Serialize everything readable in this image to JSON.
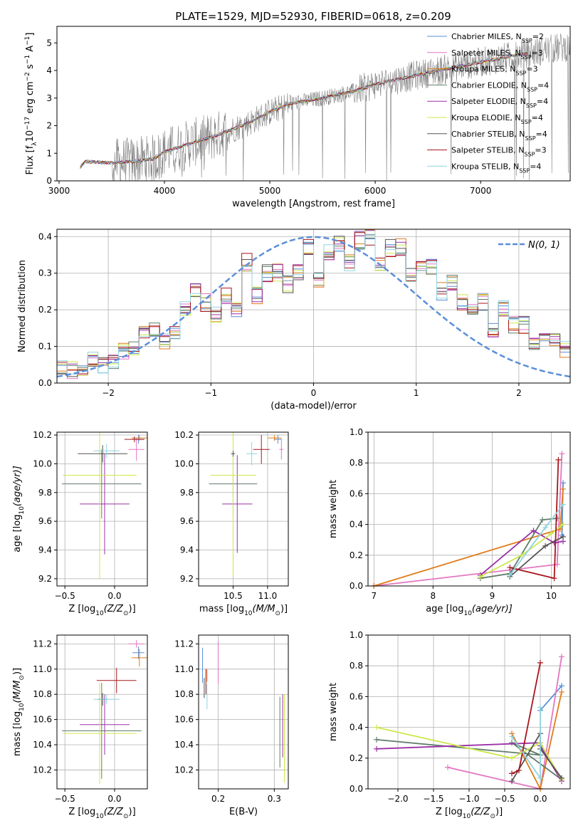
{
  "figure": {
    "title": "PLATE=1529, MJD=52930, FIBERID=0618, z=0.209"
  },
  "models": [
    {
      "name": "Chabrier MILES, N",
      "nssp": "=2",
      "color": "#5b8fd9"
    },
    {
      "name": "Salpeter MILES, N",
      "nssp": "=3",
      "color": "#e377c2"
    },
    {
      "name": "Kroupa MILES, N",
      "nssp": "=3",
      "color": "#e07b1a"
    },
    {
      "name": "Chabrier ELODIE, N",
      "nssp": "=4",
      "color": "#607d6a"
    },
    {
      "name": "Salpeter ELODIE, N",
      "nssp": "=4",
      "color": "#9b30a8"
    },
    {
      "name": "Kroupa ELODIE, N",
      "nssp": "=4",
      "color": "#cde84a"
    },
    {
      "name": "Chabrier STELIB, N",
      "nssp": "=4",
      "color": "#555555"
    },
    {
      "name": "Salpeter STELIB, N",
      "nssp": "=3",
      "color": "#a8161c"
    },
    {
      "name": "Kroupa STELIB, N",
      "nssp": "=4",
      "color": "#8fd3e0"
    }
  ],
  "colors": {
    "data": "#808080",
    "gauss": "#5b8fd9",
    "grid": "#b0b0b0"
  },
  "chart_data": [
    {
      "id": "spectrum",
      "type": "line",
      "title": "PLATE=1529, MJD=52930, FIBERID=0618, z=0.209",
      "xlabel": "wavelength [Angstrom, rest frame]",
      "ylabel_main": "Flux [f",
      "ylabel_sub": "λ",
      "ylabel_rest": "10",
      "ylabel_exp": "−17",
      "ylabel_unit": " erg cm",
      "ylabel_unit_exp1": "−2",
      "ylabel_unit2": " s",
      "ylabel_unit_exp2": "−1",
      "ylabel_unit3": " A",
      "ylabel_unit_exp3": "−1",
      "ylabel_end": "]",
      "xlim": [
        2980,
        7850
      ],
      "ylim": [
        0,
        5.6
      ],
      "xticks": [
        "3000",
        "4000",
        "5000",
        "6000",
        "7000"
      ],
      "xtick_values": [
        3000,
        4000,
        5000,
        6000,
        7000
      ],
      "yticks": [
        "0",
        "1",
        "2",
        "3",
        "4",
        "5"
      ],
      "ytick_values": [
        0,
        1,
        2,
        3,
        4,
        5
      ],
      "legend_sub": "SSP",
      "continuum": [
        [
          3200,
          0.5
        ],
        [
          3250,
          0.7
        ],
        [
          3500,
          0.65
        ],
        [
          3700,
          0.7
        ],
        [
          3900,
          0.8
        ],
        [
          4000,
          1.05
        ],
        [
          4200,
          1.3
        ],
        [
          4500,
          1.65
        ],
        [
          4800,
          2.1
        ],
        [
          5000,
          2.5
        ],
        [
          5200,
          2.8
        ],
        [
          5500,
          3.0
        ],
        [
          5800,
          3.25
        ],
        [
          6000,
          3.5
        ],
        [
          6300,
          3.75
        ],
        [
          6600,
          4.0
        ],
        [
          7000,
          4.3
        ],
        [
          7400,
          4.6
        ],
        [
          7800,
          4.85
        ]
      ],
      "data_start": 3200,
      "data_end": 7850,
      "grid": false
    },
    {
      "id": "residuals",
      "type": "histogram",
      "xlabel": "(data-model)/error",
      "ylabel": "Normed distribution",
      "legend_label": "N(0, 1)",
      "xlim": [
        -2.5,
        2.5
      ],
      "ylim": [
        0,
        0.42
      ],
      "xticks": [
        "−2",
        "−1",
        "0",
        "1",
        "2"
      ],
      "xtick_values": [
        -2,
        -1,
        0,
        1,
        2
      ],
      "yticks": [
        "0.0",
        "0.1",
        "0.2",
        "0.3",
        "0.4"
      ],
      "ytick_values": [
        0,
        0.1,
        0.2,
        0.3,
        0.4
      ],
      "bin_width": 0.1,
      "bin_start": -2.5,
      "base_hist": [
        0.04,
        0.035,
        0.03,
        0.06,
        0.05,
        0.055,
        0.09,
        0.1,
        0.14,
        0.15,
        0.11,
        0.14,
        0.2,
        0.25,
        0.22,
        0.19,
        0.24,
        0.2,
        0.33,
        0.24,
        0.3,
        0.3,
        0.27,
        0.3,
        0.37,
        0.28,
        0.36,
        0.38,
        0.33,
        0.39,
        0.4,
        0.33,
        0.37,
        0.37,
        0.3,
        0.32,
        0.32,
        0.25,
        0.27,
        0.22,
        0.2,
        0.22,
        0.15,
        0.2,
        0.16,
        0.16,
        0.1,
        0.14,
        0.12,
        0.09
      ],
      "grid": true,
      "legend_position": "upper-right"
    },
    {
      "id": "age-vs-Z",
      "type": "errorbar",
      "xlabel_pre": "Z [log",
      "xlabel_sub": "10",
      "xlabel_post": "(Z/Z",
      "xlabel_sun": "⊙",
      "xlabel_end": ")]",
      "ylabel_pre": "age  [log",
      "ylabel_sub": "10",
      "ylabel_post": "(age/yr)]",
      "xlim": [
        -0.58,
        0.33
      ],
      "ylim": [
        9.15,
        10.22
      ],
      "xticks": [
        "−0.5",
        "0.0"
      ],
      "xtick_values": [
        -0.5,
        0
      ],
      "yticks": [
        "9.2",
        "9.4",
        "9.6",
        "9.8",
        "10.0",
        "10.2"
      ],
      "ytick_values": [
        9.2,
        9.4,
        9.6,
        9.8,
        10.0,
        10.2
      ],
      "points": [
        {
          "m": 0,
          "x": 0.24,
          "y": 10.17,
          "xe": 0.06,
          "ye": 0.03
        },
        {
          "m": 1,
          "x": 0.22,
          "y": 10.1,
          "xe": 0.08,
          "ye": 0.08
        },
        {
          "m": 2,
          "x": 0.25,
          "y": 10.18,
          "xe": 0.08,
          "ye": 0.02
        },
        {
          "m": 3,
          "x": -0.13,
          "y": 9.86,
          "xe": 0.4,
          "ye": 0.24
        },
        {
          "m": 4,
          "x": -0.1,
          "y": 9.72,
          "xe": 0.25,
          "ye": 0.35
        },
        {
          "m": 5,
          "x": -0.15,
          "y": 9.92,
          "xe": 0.37,
          "ye": 0.72
        },
        {
          "m": 6,
          "x": -0.12,
          "y": 10.07,
          "xe": 0.25,
          "ye": 0.06
        },
        {
          "m": 7,
          "x": 0.2,
          "y": 10.17,
          "xe": 0.1,
          "ye": 0.02
        },
        {
          "m": 8,
          "x": -0.08,
          "y": 10.09,
          "xe": 0.13,
          "ye": 0.05
        }
      ],
      "grid": true
    },
    {
      "id": "age-vs-mass",
      "type": "errorbar",
      "xlabel_pre": "mass [log",
      "xlabel_sub": "10",
      "xlabel_post": "(M/M",
      "xlabel_sun": "⊙",
      "xlabel_end": ")]",
      "xlim": [
        10.0,
        11.3
      ],
      "ylim": [
        9.15,
        10.22
      ],
      "xticks": [
        "10.5",
        "11.0"
      ],
      "xtick_values": [
        10.5,
        11.0
      ],
      "yticks": [
        "9.2",
        "9.4",
        "9.6",
        "9.8",
        "10.0",
        "10.2"
      ],
      "ytick_values": [
        9.2,
        9.4,
        9.6,
        9.8,
        10.0,
        10.2
      ],
      "points": [
        {
          "m": 0,
          "x": 11.15,
          "y": 10.17,
          "xe": 0.06,
          "ye": 0.03
        },
        {
          "m": 1,
          "x": 11.2,
          "y": 10.1,
          "xe": 0.03,
          "ye": 0.07
        },
        {
          "m": 2,
          "x": 11.1,
          "y": 10.18,
          "xe": 0.1,
          "ye": 0.02
        },
        {
          "m": 3,
          "x": 10.5,
          "y": 9.86,
          "xe": 0.35,
          "ye": 0.22
        },
        {
          "m": 4,
          "x": 10.56,
          "y": 9.72,
          "xe": 0.22,
          "ye": 0.34
        },
        {
          "m": 5,
          "x": 10.5,
          "y": 9.92,
          "xe": 0.33,
          "ye": 0.7
        },
        {
          "m": 6,
          "x": 10.5,
          "y": 10.07,
          "xe": 0.03,
          "ye": 0.02
        },
        {
          "m": 7,
          "x": 10.91,
          "y": 10.1,
          "xe": 0.12,
          "ye": 0.1
        },
        {
          "m": 8,
          "x": 10.77,
          "y": 10.07,
          "xe": 0.08,
          "ye": 0.08
        }
      ],
      "grid": true
    },
    {
      "id": "weight-vs-age",
      "type": "line",
      "xlabel_pre": "age  [log",
      "xlabel_sub": "10",
      "xlabel_post": "(age/yr)]",
      "ylabel": "mass weight",
      "xlim": [
        6.9,
        10.32
      ],
      "ylim": [
        0,
        1.0
      ],
      "xticks": [
        "7",
        "8",
        "9",
        "10"
      ],
      "xtick_values": [
        7,
        8,
        9,
        10
      ],
      "yticks": [
        "0.0",
        "0.2",
        "0.4",
        "0.6",
        "0.8",
        "1.0"
      ],
      "ytick_values": [
        0,
        0.2,
        0.4,
        0.6,
        0.8,
        1.0
      ],
      "series": [
        {
          "m": 0,
          "x": [
            10.18,
            10.2
          ],
          "y": [
            0.33,
            0.67
          ]
        },
        {
          "m": 1,
          "x": [
            7.0,
            10.1,
            10.18
          ],
          "y": [
            0.0,
            0.14,
            0.86
          ]
        },
        {
          "m": 2,
          "x": [
            7.0,
            10.15,
            10.2
          ],
          "y": [
            0.0,
            0.37,
            0.63
          ]
        },
        {
          "m": 3,
          "x": [
            8.8,
            9.3,
            9.85,
            10.1
          ],
          "y": [
            0.05,
            0.08,
            0.43,
            0.44
          ]
        },
        {
          "m": 4,
          "x": [
            8.8,
            9.7,
            10.05,
            10.2
          ],
          "y": [
            0.07,
            0.36,
            0.28,
            0.29
          ]
        },
        {
          "m": 5,
          "x": [
            8.8,
            9.5,
            10.0,
            10.2
          ],
          "y": [
            0.06,
            0.2,
            0.34,
            0.4
          ]
        },
        {
          "m": 6,
          "x": [
            9.3,
            9.9,
            10.2
          ],
          "y": [
            0.06,
            0.26,
            0.32
          ]
        },
        {
          "m": 7,
          "x": [
            9.3,
            10.05,
            10.12
          ],
          "y": [
            0.12,
            0.05,
            0.82
          ]
        },
        {
          "m": 8,
          "x": [
            9.3,
            9.9,
            10.2
          ],
          "y": [
            0.07,
            0.38,
            0.53
          ]
        }
      ],
      "grid": true
    },
    {
      "id": "mass-vs-Z",
      "type": "errorbar",
      "xlabel_pre": "Z [log",
      "xlabel_sub": "10",
      "xlabel_post": "(Z/Z",
      "xlabel_sun": "⊙",
      "xlabel_end": ")]",
      "ylabel_pre": "mass [log",
      "ylabel_sub": "10",
      "ylabel_post": "(M/M",
      "ylabel_sun": "⊙",
      "ylabel_end": ")]",
      "xlim": [
        -0.58,
        0.33
      ],
      "ylim": [
        10.05,
        11.27
      ],
      "xticks": [
        "−0.5",
        "0.0"
      ],
      "xtick_values": [
        -0.5,
        0
      ],
      "yticks": [
        "10.2",
        "10.4",
        "10.6",
        "10.8",
        "11.0",
        "11.2"
      ],
      "ytick_values": [
        10.2,
        10.4,
        10.6,
        10.8,
        11.0,
        11.2
      ],
      "points": [
        {
          "m": 0,
          "x": 0.24,
          "y": 11.13,
          "xe": 0.06,
          "ye": 0.05
        },
        {
          "m": 1,
          "x": 0.22,
          "y": 11.2,
          "xe": 0.08,
          "ye": 0.03
        },
        {
          "m": 2,
          "x": 0.25,
          "y": 11.09,
          "xe": 0.08,
          "ye": 0.07
        },
        {
          "m": 3,
          "x": -0.13,
          "y": 10.51,
          "xe": 0.4,
          "ye": 0.38
        },
        {
          "m": 4,
          "x": -0.1,
          "y": 10.56,
          "xe": 0.25,
          "ye": 0.24
        },
        {
          "m": 5,
          "x": -0.15,
          "y": 10.49,
          "xe": 0.37,
          "ye": 0.4
        },
        {
          "m": 6,
          "x": -0.12,
          "y": 10.76,
          "xe": 0.05,
          "ye": 0.05
        },
        {
          "m": 7,
          "x": 0.02,
          "y": 10.91,
          "xe": 0.2,
          "ye": 0.1
        },
        {
          "m": 8,
          "x": -0.08,
          "y": 10.76,
          "xe": 0.13,
          "ye": 0.04
        }
      ],
      "grid": true
    },
    {
      "id": "mass-vs-ebv",
      "type": "errorbar",
      "xlabel": "E(B-V)",
      "xlim": [
        0.165,
        0.325
      ],
      "ylim": [
        10.05,
        11.27
      ],
      "xticks": [
        "0.2",
        "0.3"
      ],
      "xtick_values": [
        0.2,
        0.3
      ],
      "yticks": [
        "10.2",
        "10.4",
        "10.6",
        "10.8",
        "11.0",
        "11.2"
      ],
      "ytick_values": [
        10.2,
        10.4,
        10.6,
        10.8,
        11.0,
        11.2
      ],
      "points": [
        {
          "m": 0,
          "x": 0.172,
          "y": 11.03,
          "xe": 0,
          "ye": 0.14
        },
        {
          "m": 1,
          "x": 0.2,
          "y": 11.05,
          "xe": 0,
          "ye": 0.17
        },
        {
          "m": 2,
          "x": 0.18,
          "y": 10.95,
          "xe": 0,
          "ye": 0.05
        },
        {
          "m": 3,
          "x": 0.31,
          "y": 10.5,
          "xe": 0,
          "ye": 0.28
        },
        {
          "m": 4,
          "x": 0.315,
          "y": 10.55,
          "xe": 0,
          "ye": 0.25
        },
        {
          "m": 5,
          "x": 0.318,
          "y": 10.45,
          "xe": 0,
          "ye": 0.35
        },
        {
          "m": 6,
          "x": 0.175,
          "y": 10.85,
          "xe": 0,
          "ye": 0.08
        },
        {
          "m": 7,
          "x": 0.178,
          "y": 10.9,
          "xe": 0,
          "ye": 0.1
        },
        {
          "m": 8,
          "x": 0.18,
          "y": 10.78,
          "xe": 0,
          "ye": 0.1
        }
      ],
      "grid": true
    },
    {
      "id": "weight-vs-Z",
      "type": "line",
      "xlabel_pre": "Z [log",
      "xlabel_sub": "10",
      "xlabel_post": "(Z/Z",
      "xlabel_sun": "⊙",
      "xlabel_end": ")]",
      "ylabel": "mass weight",
      "xlim": [
        -2.42,
        0.42
      ],
      "ylim": [
        0,
        1.0
      ],
      "xticks": [
        "−2.0",
        "−1.5",
        "−1.0",
        "−0.5",
        "0.0"
      ],
      "xtick_values": [
        -2.0,
        -1.5,
        -1.0,
        -0.5,
        0.0
      ],
      "yticks": [
        "0.0",
        "0.2",
        "0.4",
        "0.6",
        "0.8",
        "1.0"
      ],
      "ytick_values": [
        0,
        0.2,
        0.4,
        0.6,
        0.8,
        1.0
      ],
      "series": [
        {
          "m": 0,
          "x": [
            0.0,
            0.3
          ],
          "y": [
            0.51,
            0.67
          ]
        },
        {
          "m": 1,
          "x": [
            -1.3,
            0.0,
            0.3
          ],
          "y": [
            0.14,
            0.0,
            0.86
          ]
        },
        {
          "m": 2,
          "x": [
            -0.4,
            0.0,
            0.3
          ],
          "y": [
            0.36,
            0.0,
            0.63
          ]
        },
        {
          "m": 3,
          "x": [
            -2.3,
            0.0,
            -0.4,
            0.3
          ],
          "y": [
            0.32,
            0.22,
            0.3,
            0.06
          ]
        },
        {
          "m": 4,
          "x": [
            -2.3,
            0.0,
            0.0,
            0.3
          ],
          "y": [
            0.26,
            0.3,
            0.28,
            0.05
          ]
        },
        {
          "m": 5,
          "x": [
            -2.3,
            -0.4,
            0.0,
            0.3
          ],
          "y": [
            0.4,
            0.2,
            0.3,
            0.06
          ]
        },
        {
          "m": 6,
          "x": [
            -0.4,
            0.0,
            0.0,
            0.3
          ],
          "y": [
            0.05,
            0.36,
            0.26,
            0.07
          ]
        },
        {
          "m": 7,
          "x": [
            -0.4,
            -0.3,
            0.0
          ],
          "y": [
            0.1,
            0.12,
            0.82
          ]
        },
        {
          "m": 8,
          "x": [
            -0.4,
            0.0,
            0.0
          ],
          "y": [
            0.34,
            0.07,
            0.53
          ]
        }
      ],
      "grid": true
    }
  ]
}
